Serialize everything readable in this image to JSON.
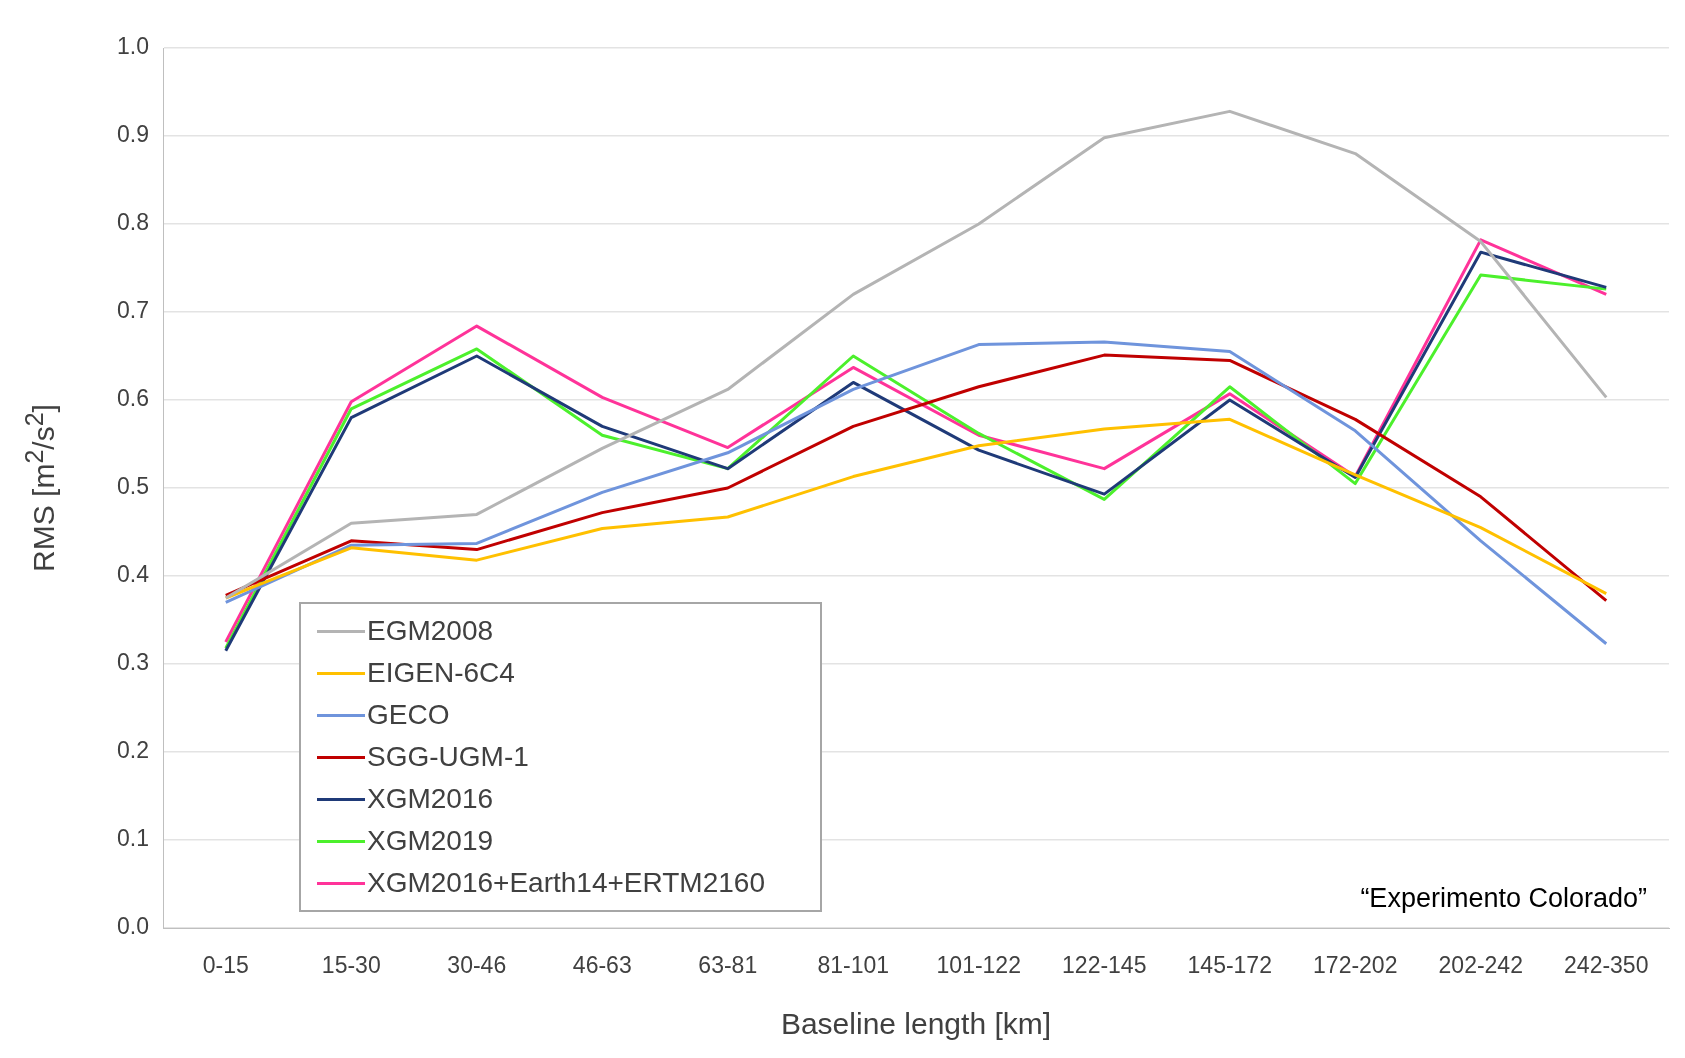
{
  "chart_data": {
    "type": "line",
    "xlabel": "Baseline length [km]",
    "ylabel": "RMS [m$^{2}$/s$^{2}$]",
    "categories": [
      "0-15",
      "15-30",
      "30-46",
      "46-63",
      "63-81",
      "81-101",
      "101-122",
      "122-145",
      "145-172",
      "172-202",
      "202-242",
      "242-350"
    ],
    "ylim": [
      0,
      1
    ],
    "yticks": [
      {
        "value": 0,
        "label": "0.0"
      },
      0.1,
      0.2,
      0.3,
      0.4,
      0.5,
      0.6,
      0.7,
      0.8,
      0.9,
      {
        "value": 1,
        "label": "1.0"
      }
    ],
    "grid": "y",
    "legend": "bottom left",
    "marker": "none",
    "line_style": "solid",
    "annotations": [
      "“Experimento Colorado”"
    ],
    "series": [
      {
        "name": "EGM2008",
        "color": "#b4b4b4",
        "values": [
          0.375,
          0.46,
          0.47,
          0.545,
          0.612,
          0.72,
          0.8,
          0.898,
          0.928,
          0.88,
          0.78,
          0.603
        ]
      },
      {
        "name": "EIGEN-6C4",
        "color": "#ffc000",
        "values": [
          0.375,
          0.432,
          0.418,
          0.454,
          0.467,
          0.513,
          0.548,
          0.567,
          0.578,
          0.515,
          0.455,
          0.38
        ]
      },
      {
        "name": "GECO",
        "color": "#6f94dc",
        "values": [
          0.37,
          0.435,
          0.437,
          0.495,
          0.54,
          0.612,
          0.663,
          0.666,
          0.655,
          0.565,
          0.44,
          0.323
        ]
      },
      {
        "name": "SGG-UGM-1",
        "color": "#c00000",
        "values": [
          0.378,
          0.44,
          0.43,
          0.472,
          0.5,
          0.57,
          0.615,
          0.651,
          0.645,
          0.578,
          0.49,
          0.372
        ]
      },
      {
        "name": "XGM2016",
        "color": "#1f3a78",
        "values": [
          0.315,
          0.58,
          0.65,
          0.57,
          0.522,
          0.62,
          0.543,
          0.493,
          0.6,
          0.512,
          0.768,
          0.728
        ]
      },
      {
        "name": "XGM2019",
        "color": "#4cf02c",
        "values": [
          0.318,
          0.59,
          0.658,
          0.56,
          0.522,
          0.65,
          0.562,
          0.487,
          0.615,
          0.505,
          0.742,
          0.726
        ]
      },
      {
        "name": "XGM2016+Earth14+ERTM2160",
        "color": "#ff3399",
        "values": [
          0.325,
          0.598,
          0.684,
          0.603,
          0.546,
          0.637,
          0.56,
          0.522,
          0.607,
          0.513,
          0.782,
          0.72
        ]
      }
    ]
  }
}
